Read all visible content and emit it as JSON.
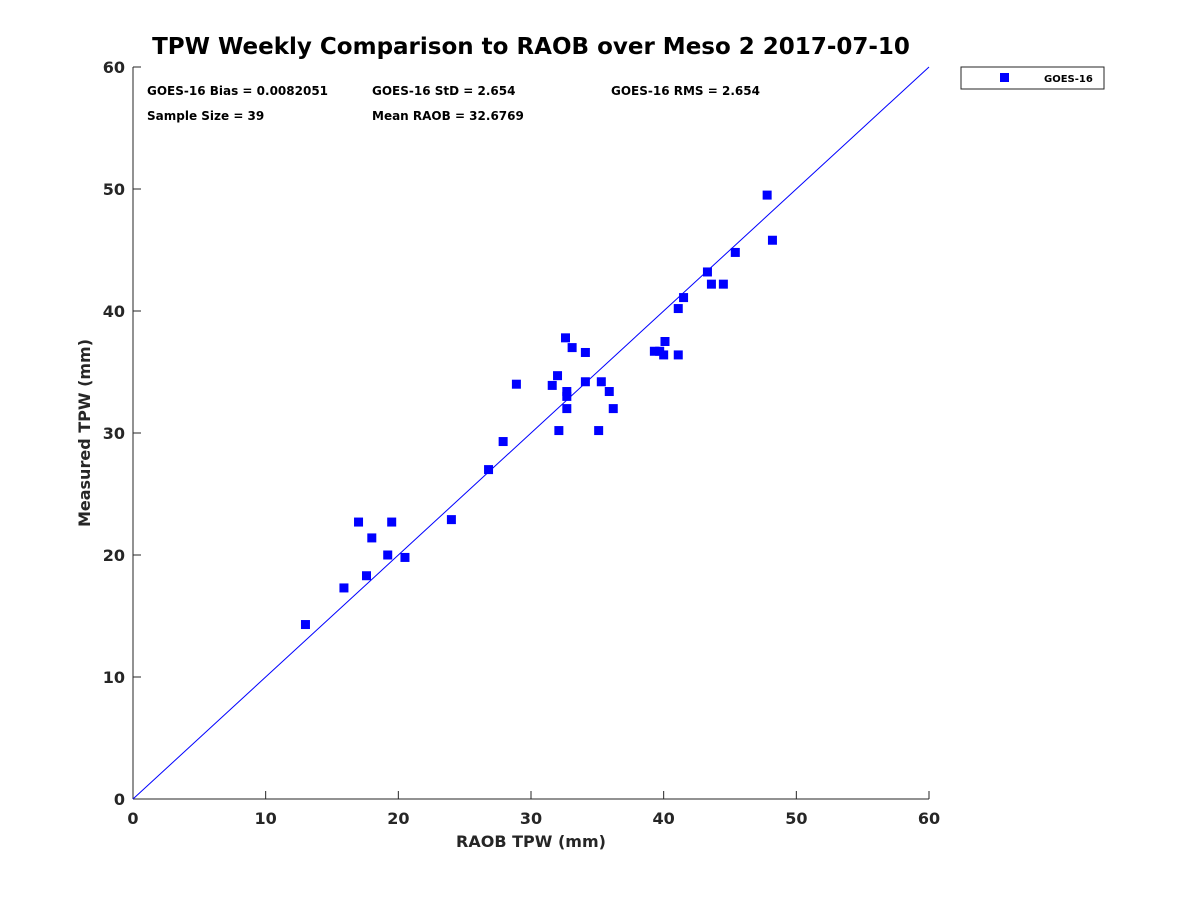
{
  "chart_data": {
    "type": "scatter",
    "title": "TPW Weekly Comparison to RAOB over Meso 2 2017-07-10",
    "xlabel": "RAOB TPW (mm)",
    "ylabel": "Measured TPW (mm)",
    "xlim": [
      0,
      60
    ],
    "ylim": [
      0,
      60
    ],
    "xticks": [
      "0",
      "10",
      "20",
      "30",
      "40",
      "50",
      "60"
    ],
    "yticks": [
      "0",
      "10",
      "20",
      "30",
      "40",
      "50",
      "60"
    ],
    "grid": false,
    "legend": {
      "placement": "outside-top-right",
      "entries": [
        "GOES-16"
      ]
    },
    "colors": {
      "marker": "#0000ff",
      "line": "#0000ff"
    },
    "annotations": {
      "bias": "GOES-16 Bias = 0.0082051",
      "std": "GOES-16 StD = 2.654",
      "rms": "GOES-16 RMS = 2.654",
      "sample": "Sample Size = 39",
      "mean": "Mean RAOB = 32.6769"
    },
    "reference_line": {
      "from": [
        0,
        0
      ],
      "to": [
        60,
        60
      ]
    },
    "series": [
      {
        "name": "GOES-16",
        "points": [
          [
            13.0,
            14.3
          ],
          [
            15.9,
            17.3
          ],
          [
            17.0,
            22.7
          ],
          [
            17.6,
            18.3
          ],
          [
            18.0,
            21.4
          ],
          [
            19.2,
            20.0
          ],
          [
            19.5,
            22.7
          ],
          [
            20.5,
            19.8
          ],
          [
            24.0,
            22.9
          ],
          [
            26.8,
            27.0
          ],
          [
            27.9,
            29.3
          ],
          [
            28.9,
            34.0
          ],
          [
            31.6,
            33.9
          ],
          [
            32.0,
            34.7
          ],
          [
            32.1,
            30.2
          ],
          [
            32.6,
            37.8
          ],
          [
            32.7,
            33.4
          ],
          [
            32.7,
            33.0
          ],
          [
            32.7,
            32.0
          ],
          [
            33.1,
            37.0
          ],
          [
            34.1,
            36.6
          ],
          [
            34.1,
            34.2
          ],
          [
            35.1,
            30.2
          ],
          [
            35.3,
            34.2
          ],
          [
            35.9,
            33.4
          ],
          [
            36.2,
            32.0
          ],
          [
            39.3,
            36.7
          ],
          [
            39.7,
            36.7
          ],
          [
            40.0,
            36.4
          ],
          [
            40.1,
            37.5
          ],
          [
            41.1,
            36.4
          ],
          [
            41.1,
            40.2
          ],
          [
            41.5,
            41.1
          ],
          [
            43.3,
            43.2
          ],
          [
            43.6,
            42.2
          ],
          [
            44.5,
            42.2
          ],
          [
            45.4,
            44.8
          ],
          [
            47.8,
            49.5
          ],
          [
            48.2,
            45.8
          ]
        ]
      }
    ]
  }
}
